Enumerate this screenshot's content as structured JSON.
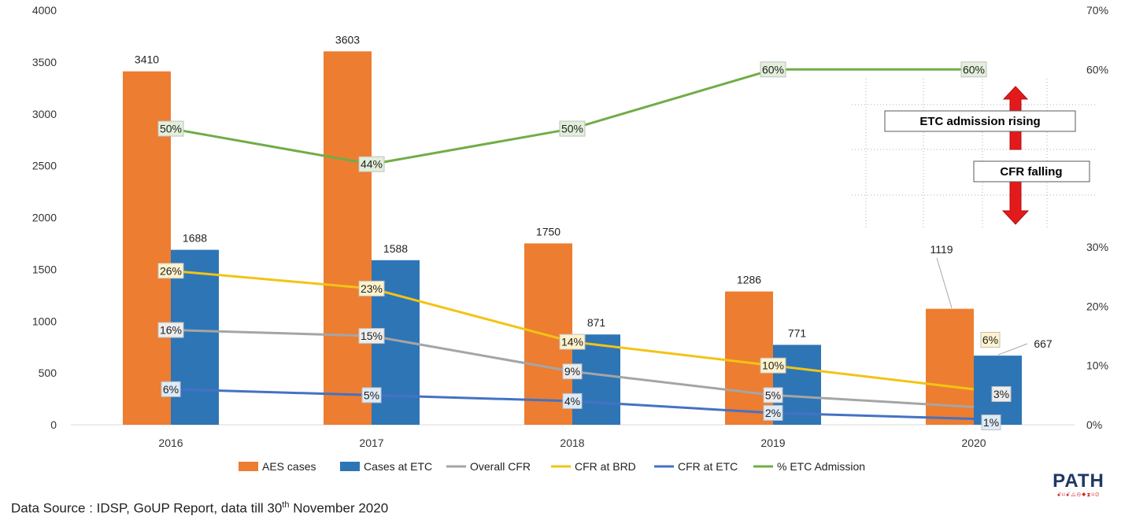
{
  "chart_data": {
    "type": "bar",
    "categories": [
      "2016",
      "2017",
      "2018",
      "2019",
      "2020"
    ],
    "y_left": {
      "ylim": [
        0,
        4000
      ],
      "ticks": [
        0,
        500,
        1000,
        1500,
        2000,
        2500,
        3000,
        3500,
        4000
      ]
    },
    "y_right": {
      "ylim": [
        0,
        70
      ],
      "ticks": [
        "0%",
        "10%",
        "20%",
        "30%",
        "60%",
        "70%"
      ],
      "tick_values": [
        0,
        10,
        20,
        30,
        60,
        70
      ]
    },
    "bar_series": [
      {
        "name": "AES cases",
        "color": "#ed7d31",
        "values": [
          3410,
          3603,
          1750,
          1286,
          1119
        ]
      },
      {
        "name": "Cases at ETC",
        "color": "#2e75b6",
        "values": [
          1688,
          1588,
          871,
          771,
          667
        ]
      }
    ],
    "line_series": [
      {
        "name": "Overall CFR",
        "color": "#a5a5a5",
        "label_bg": "#ededed",
        "values": [
          16,
          15,
          9,
          5,
          3
        ],
        "labels": [
          "16%",
          "15%",
          "9%",
          "5%",
          "3%"
        ]
      },
      {
        "name": "CFR at BRD",
        "color": "#f2c414",
        "label_bg": "#fff2cc",
        "values": [
          26,
          23,
          14,
          10,
          6
        ],
        "labels": [
          "26%",
          "23%",
          "14%",
          "10%",
          "6%"
        ]
      },
      {
        "name": "CFR at ETC",
        "color": "#4472c4",
        "label_bg": "#deebf7",
        "values": [
          6,
          5,
          4,
          2,
          1
        ],
        "labels": [
          "6%",
          "5%",
          "4%",
          "2%",
          "1%"
        ]
      },
      {
        "name": "% ETC Admission",
        "color": "#70ad47",
        "label_bg": "#e2efda",
        "values": [
          50,
          44,
          50,
          60,
          60
        ],
        "labels": [
          "50%",
          "44%",
          "50%",
          "60%",
          "60%"
        ]
      }
    ],
    "legend": [
      "AES cases",
      "Cases at ETC",
      "Overall CFR",
      "CFR at BRD",
      "CFR at ETC",
      "% ETC Admission"
    ],
    "legend_position": "bottom",
    "grid": false,
    "annotations": [
      "ETC admission rising",
      "CFR falling"
    ]
  },
  "source_note": {
    "prefix": "Data Source : IDSP, GoUP Report, data till 30",
    "sup": "th",
    "suffix": " November 2020"
  },
  "logo": {
    "name": "PATH",
    "sub": "ꗃ⌑ꗃ◬⊖◆⧗⌑⊘"
  }
}
